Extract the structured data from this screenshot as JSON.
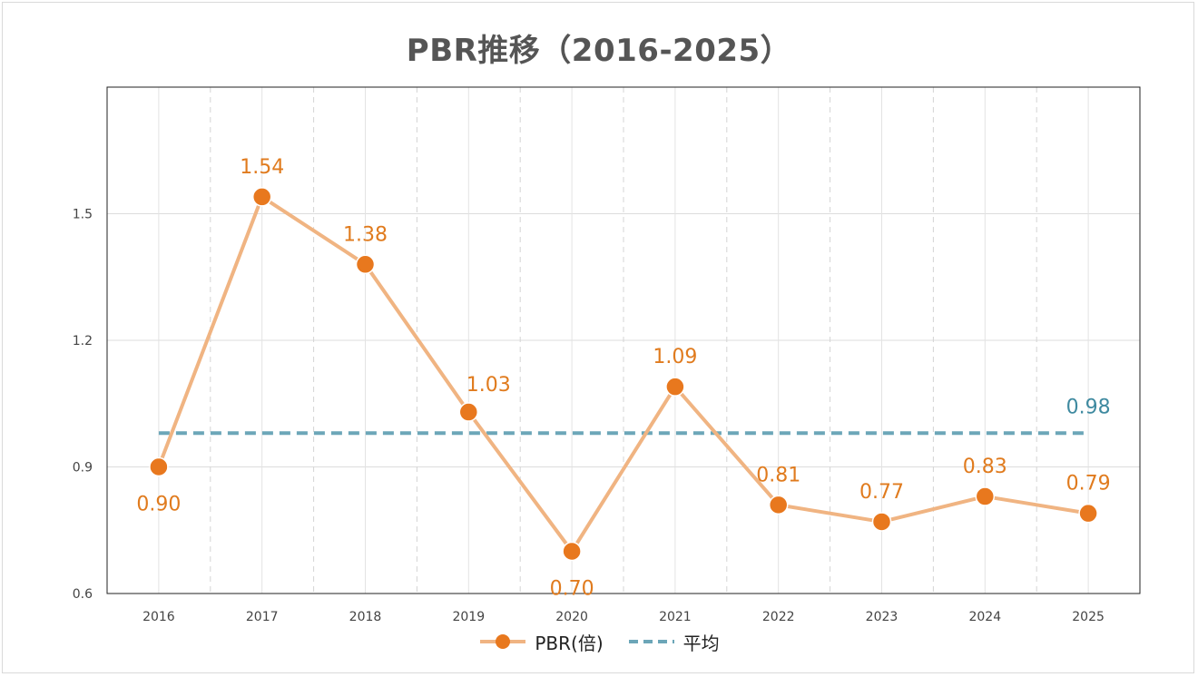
{
  "chart_data": {
    "type": "line",
    "title": "PBR推移（2016-2025）",
    "categories": [
      "2016",
      "2017",
      "2018",
      "2019",
      "2020",
      "2021",
      "2022",
      "2023",
      "2024",
      "2025"
    ],
    "series": [
      {
        "name": "PBR(倍)",
        "values": [
          0.9,
          1.54,
          1.38,
          1.03,
          0.7,
          1.09,
          0.81,
          0.77,
          0.83,
          0.79
        ],
        "labels": [
          "0.90",
          "1.54",
          "1.38",
          "1.03",
          "0.70",
          "1.09",
          "0.81",
          "0.77",
          "0.83",
          "0.79"
        ],
        "label_positions": [
          "below",
          "above",
          "above",
          "above-right",
          "below",
          "above",
          "above",
          "above",
          "above",
          "above"
        ],
        "line_color": "#f0b482",
        "marker_color": "#e8781e",
        "label_color": "#e07b1e"
      },
      {
        "name": "平均",
        "value": 0.98,
        "label": "0.98",
        "style": "dashed",
        "color": "#6ca6b8",
        "label_color": "#3f8aa0"
      }
    ],
    "y_ticks": [
      "0.6",
      "0.9",
      "1.2",
      "1.5"
    ],
    "y_tick_values": [
      0.6,
      0.9,
      1.2,
      1.5
    ],
    "ylim": [
      0.6,
      1.8
    ],
    "xlabel": "",
    "ylabel": "",
    "grid": true,
    "legend_position": "bottom"
  }
}
